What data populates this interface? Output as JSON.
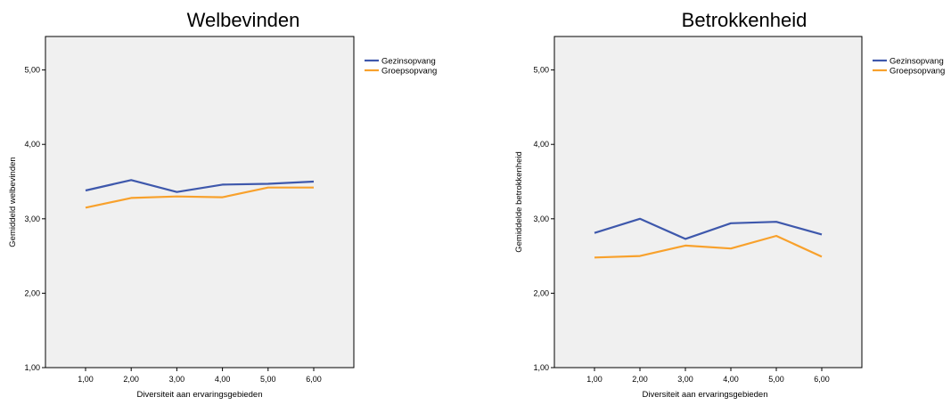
{
  "charts": [
    {
      "title": "Welbevinden",
      "xlabel": "Diversiteit aan ervaringsgebieden",
      "ylabel": "Gemiddeld welbevinden"
    },
    {
      "title": "Betrokkenheid",
      "xlabel": "Diversiteit aan ervaringsgebieden",
      "ylabel": "Gemiddelde betrokkenheid"
    }
  ],
  "chart_data": [
    {
      "type": "line",
      "title": "Welbevinden",
      "xlabel": "Diversiteit aan ervaringsgebieden",
      "ylabel": "Gemiddeld welbevinden",
      "categories": [
        "1,00",
        "2,00",
        "3,00",
        "4,00",
        "5,00",
        "6,00"
      ],
      "yticks": [
        "1,00",
        "2,00",
        "3,00",
        "4,00",
        "5,00"
      ],
      "ylim": [
        1,
        5.45
      ],
      "grid": false,
      "legend_position": "right",
      "background": "#f0f0f0",
      "series": [
        {
          "name": "Gezinsopvang",
          "color": "#3e58ac",
          "values": [
            3.38,
            3.52,
            3.36,
            3.46,
            3.47,
            3.5
          ]
        },
        {
          "name": "Groepsopvang",
          "color": "#f8a12c",
          "values": [
            3.15,
            3.28,
            3.3,
            3.29,
            3.42,
            3.42
          ]
        }
      ]
    },
    {
      "type": "line",
      "title": "Betrokkenheid",
      "xlabel": "Diversiteit aan ervaringsgebieden",
      "ylabel": "Gemiddelde betrokkenheid",
      "categories": [
        "1,00",
        "2,00",
        "3,00",
        "4,00",
        "5,00",
        "6,00"
      ],
      "yticks": [
        "1,00",
        "2,00",
        "3,00",
        "4,00",
        "5,00"
      ],
      "ylim": [
        1,
        5.45
      ],
      "grid": false,
      "legend_position": "right",
      "background": "#f0f0f0",
      "series": [
        {
          "name": "Gezinsopvang",
          "color": "#3e58ac",
          "values": [
            2.81,
            3.0,
            2.73,
            2.94,
            2.96,
            2.79
          ]
        },
        {
          "name": "Groepsopvang",
          "color": "#f8a12c",
          "values": [
            2.48,
            2.5,
            2.64,
            2.6,
            2.77,
            2.49
          ]
        }
      ]
    }
  ]
}
